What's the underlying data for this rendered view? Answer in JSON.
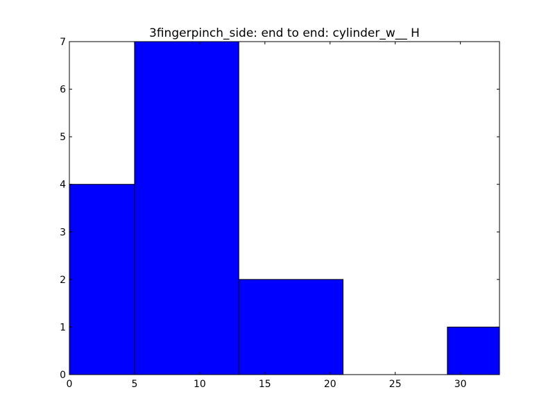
{
  "chart_data": {
    "type": "bar",
    "title": "3fingerpinch_side: end to end: cylinder_w__ H",
    "xlabel": "",
    "ylabel": "",
    "bins": [
      {
        "x_start": 0,
        "x_end": 5,
        "value": 4
      },
      {
        "x_start": 5,
        "x_end": 13,
        "value": 7
      },
      {
        "x_start": 13,
        "x_end": 21,
        "value": 2
      },
      {
        "x_start": 21,
        "x_end": 29,
        "value": 0
      },
      {
        "x_start": 29,
        "x_end": 33,
        "value": 1
      }
    ],
    "xlim": [
      0,
      33
    ],
    "ylim": [
      0,
      7
    ],
    "xticks": [
      0,
      5,
      10,
      15,
      20,
      25,
      30
    ],
    "xtick_labels": [
      "0",
      "5",
      "10",
      "15",
      "20",
      "25",
      "30"
    ],
    "yticks": [
      0,
      1,
      2,
      3,
      4,
      5,
      6,
      7
    ],
    "ytick_labels": [
      "0",
      "1",
      "2",
      "3",
      "4",
      "5",
      "6",
      "7"
    ],
    "grid": false,
    "legend": "none",
    "bar_color": "#0000ff",
    "edge_color": "#000000"
  }
}
